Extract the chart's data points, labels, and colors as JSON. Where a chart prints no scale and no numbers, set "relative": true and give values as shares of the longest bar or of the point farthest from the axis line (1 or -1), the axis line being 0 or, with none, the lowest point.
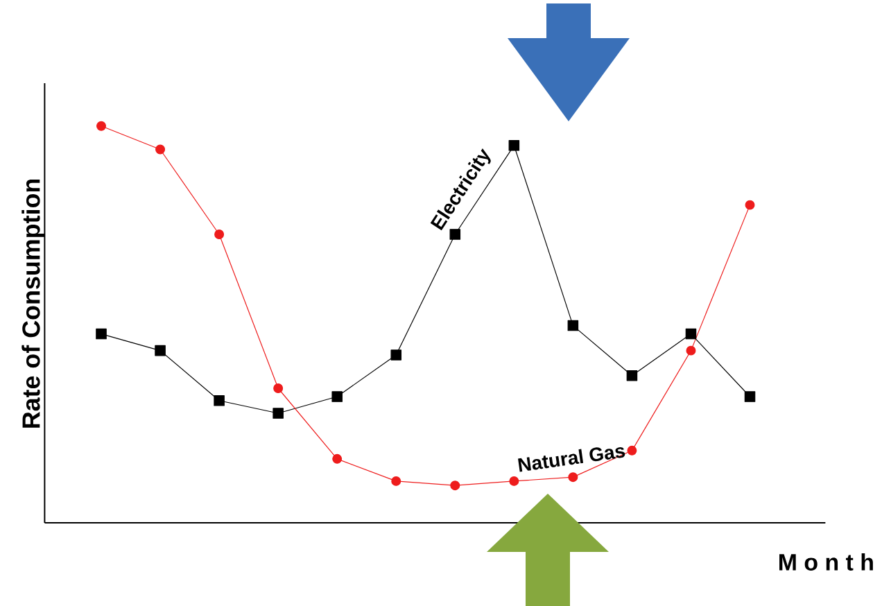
{
  "chart_data": {
    "type": "line",
    "relative": true,
    "xlabel": "M o n t h",
    "ylabel": "Rate of Consumption",
    "categories": [
      null,
      null,
      null,
      null,
      null,
      null,
      null,
      null,
      null,
      null,
      null,
      null
    ],
    "series": [
      {
        "color": "#000000",
        "marker": "square",
        "values": [
          0.476,
          0.434,
          0.308,
          0.276,
          0.318,
          0.423,
          0.727,
          0.951,
          0.497,
          0.371,
          0.476,
          0.318
        ]
      },
      {
        "color": "#ee1c1c",
        "marker": "circle",
        "values": [
          1.0,
          0.941,
          0.727,
          0.339,
          0.161,
          0.105,
          0.094,
          0.105,
          0.115,
          0.182,
          0.434,
          0.801
        ]
      }
    ],
    "annotations": [
      "Electricity",
      "Natural Gas"
    ]
  }
}
